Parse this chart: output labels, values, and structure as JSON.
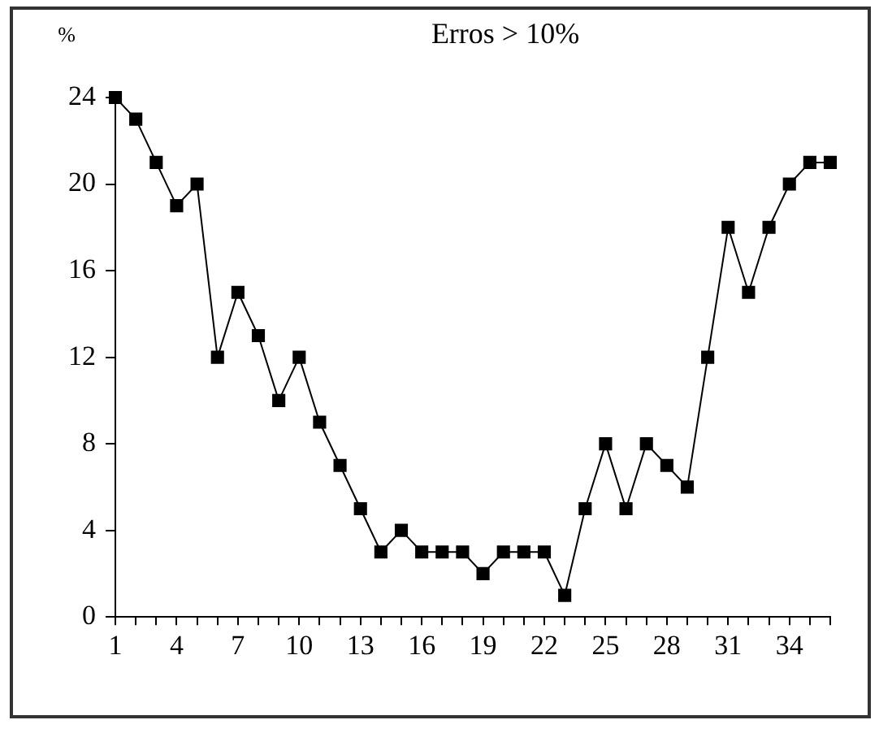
{
  "chart_data": {
    "type": "line",
    "title": "Erros > 10%",
    "ylabel": "%",
    "x": [
      1,
      2,
      3,
      4,
      5,
      6,
      7,
      8,
      9,
      10,
      11,
      12,
      13,
      14,
      15,
      16,
      17,
      18,
      19,
      20,
      21,
      22,
      23,
      24,
      25,
      26,
      27,
      28,
      29,
      30,
      31,
      32,
      33,
      34,
      35,
      36
    ],
    "series": [
      {
        "color": "#000000",
        "values": [
          24,
          23,
          21,
          19,
          20,
          12,
          15,
          13,
          10,
          12,
          9,
          7,
          5,
          3,
          4,
          3,
          3,
          3,
          2,
          3,
          3,
          3,
          1,
          5,
          8,
          5,
          8,
          7,
          6,
          12,
          18,
          15,
          18,
          20,
          21,
          21
        ]
      }
    ],
    "xlim": [
      1,
      36
    ],
    "xticks": [
      1,
      {
        "value": 2,
        "label": null
      },
      {
        "value": 3,
        "label": null
      },
      4,
      {
        "value": 5,
        "label": null
      },
      {
        "value": 6,
        "label": null
      },
      7,
      {
        "value": 8,
        "label": null
      },
      {
        "value": 9,
        "label": null
      },
      10,
      {
        "value": 11,
        "label": null
      },
      {
        "value": 12,
        "label": null
      },
      13,
      {
        "value": 14,
        "label": null
      },
      {
        "value": 15,
        "label": null
      },
      16,
      {
        "value": 17,
        "label": null
      },
      {
        "value": 18,
        "label": null
      },
      19,
      {
        "value": 20,
        "label": null
      },
      {
        "value": 21,
        "label": null
      },
      22,
      {
        "value": 23,
        "label": null
      },
      {
        "value": 24,
        "label": null
      },
      25,
      {
        "value": 26,
        "label": null
      },
      {
        "value": 27,
        "label": null
      },
      28,
      {
        "value": 29,
        "label": null
      },
      {
        "value": 30,
        "label": null
      },
      31,
      {
        "value": 32,
        "label": null
      },
      {
        "value": 33,
        "label": null
      },
      34,
      {
        "value": 35,
        "label": null
      },
      {
        "value": 36,
        "label": null
      }
    ],
    "ylim": [
      0,
      24
    ],
    "yticks": [
      0,
      4,
      8,
      12,
      16,
      20,
      24
    ],
    "grid": false,
    "legend": false,
    "marker": "square",
    "line_style": "solid"
  }
}
